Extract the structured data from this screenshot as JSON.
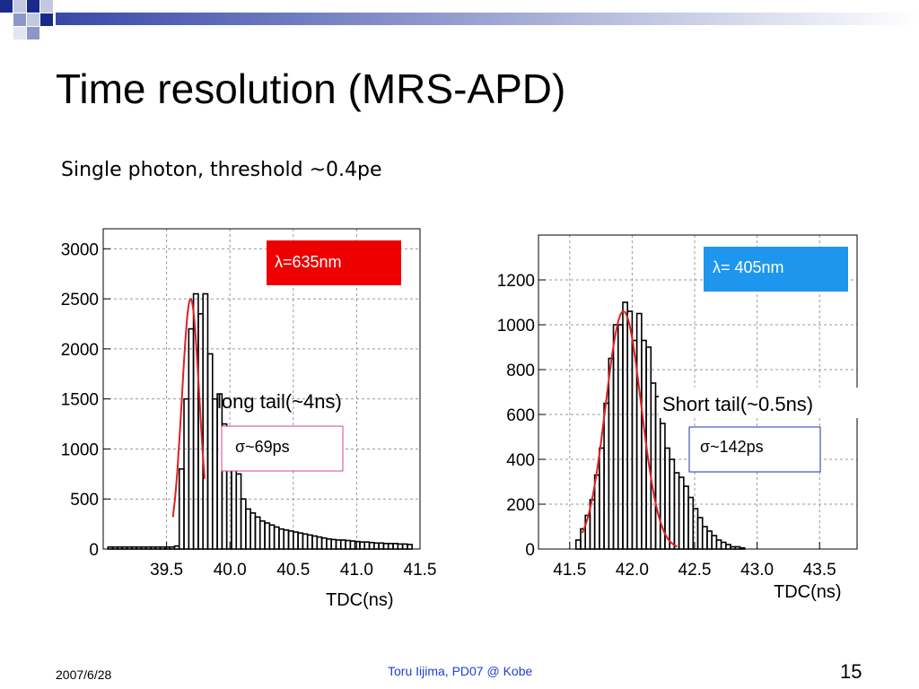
{
  "slide": {
    "title": "Time resolution (MRS-APD)",
    "subtitle": "Single photon, threshold ~0.4pe",
    "footer_date": "2007/6/28",
    "footer_center": "Toru Iijima, PD07 @ Kobe",
    "page_number": "15",
    "accent_colors": [
      "#1a2a8a",
      "#8d96c8",
      "#c3c8e2"
    ]
  },
  "chart_data": [
    {
      "type": "histogram",
      "title": "",
      "xlabel": "TDC(ns)",
      "ylabel": "",
      "xlim": [
        39.0,
        41.5
      ],
      "ylim": [
        0,
        3200
      ],
      "x_ticks": [
        39.5,
        40.0,
        40.5,
        41.0,
        41.5
      ],
      "x_tick_labels": [
        "39.5",
        "40.0",
        "40.5",
        "41.0",
        "41.5"
      ],
      "y_ticks": [
        0,
        500,
        1000,
        1500,
        2000,
        2500,
        3000
      ],
      "y_tick_labels": [
        "0",
        "500",
        "1000",
        "1500",
        "2000",
        "2500",
        "3000"
      ],
      "grid": true,
      "bin_edges_start": 39.0,
      "bin_width": 0.0375,
      "counts": [
        0,
        20,
        20,
        20,
        20,
        20,
        20,
        20,
        20,
        20,
        20,
        20,
        20,
        20,
        20,
        30,
        800,
        1500,
        2200,
        2550,
        2350,
        2550,
        1950,
        1500,
        1550,
        1250,
        1150,
        900,
        750,
        500,
        400,
        360,
        320,
        280,
        260,
        240,
        220,
        200,
        190,
        180,
        170,
        160,
        150,
        140,
        130,
        120,
        110,
        100,
        95,
        90,
        90,
        85,
        80,
        75,
        70,
        70,
        65,
        60,
        60,
        55,
        55,
        55,
        50,
        50,
        45
      ],
      "fit": {
        "type": "gaussian",
        "mean": 39.69,
        "sigma": 0.069,
        "amplitude": 2500,
        "range": [
          39.55,
          39.8
        ]
      },
      "badge": {
        "text": "λ=635nm",
        "color": "#ee0000"
      },
      "note": "long tail(~4ns)",
      "result": "σ~69ps"
    },
    {
      "type": "histogram",
      "title": "",
      "xlabel": "TDC(ns)",
      "ylabel": "",
      "xlim": [
        41.25,
        43.8
      ],
      "ylim": [
        0,
        1400
      ],
      "x_ticks": [
        41.5,
        42.0,
        42.5,
        43.0,
        43.5
      ],
      "x_tick_labels": [
        "41.5",
        "42.0",
        "42.5",
        "43.0",
        "43.5"
      ],
      "y_ticks": [
        0,
        200,
        400,
        600,
        800,
        1000,
        1200
      ],
      "y_tick_labels": [
        "0",
        "200",
        "400",
        "600",
        "800",
        "1000",
        "1200"
      ],
      "grid": true,
      "bin_edges_start": 41.55,
      "bin_width": 0.0375,
      "counts": [
        40,
        90,
        150,
        220,
        330,
        450,
        650,
        850,
        1000,
        1000,
        1100,
        1060,
        930,
        1050,
        930,
        900,
        740,
        680,
        560,
        450,
        400,
        340,
        320,
        280,
        230,
        180,
        140,
        100,
        80,
        60,
        40,
        30,
        20,
        10,
        10,
        5
      ],
      "fit": {
        "type": "gaussian",
        "mean": 41.93,
        "sigma": 0.142,
        "amplitude": 1060,
        "range": [
          41.6,
          42.36
        ]
      },
      "badge": {
        "text": "λ= 405nm",
        "color": "#1e96ee"
      },
      "note": "Short tail(~0.5ns)",
      "result": "σ~142ps"
    }
  ]
}
